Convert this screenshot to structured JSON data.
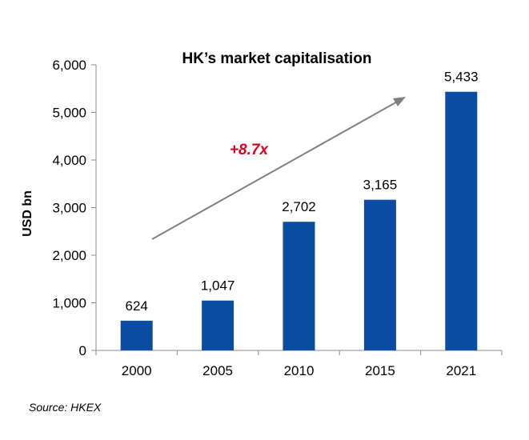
{
  "chart_data": {
    "type": "bar",
    "title": "HK’s market capitalisation",
    "ylabel": "USD bn",
    "xlabel": "",
    "categories": [
      "2000",
      "2005",
      "2010",
      "2015",
      "2021"
    ],
    "values": [
      624,
      1047,
      2702,
      3165,
      5433
    ],
    "data_labels": [
      "624",
      "1,047",
      "2,702",
      "3,165",
      "5,433"
    ],
    "ylim": [
      0,
      6000
    ],
    "yticks": [
      0,
      1000,
      2000,
      3000,
      4000,
      5000,
      6000
    ],
    "ytick_labels": [
      "0",
      "1,000",
      "2,000",
      "3,000",
      "4,000",
      "5,000",
      "6,000"
    ],
    "bar_color": "#0A4DA2",
    "grid": false,
    "annotation": {
      "text": "+8.7x",
      "color": "#E0001B",
      "arrow_color": "#808080"
    }
  },
  "source": "Source: HKEX"
}
